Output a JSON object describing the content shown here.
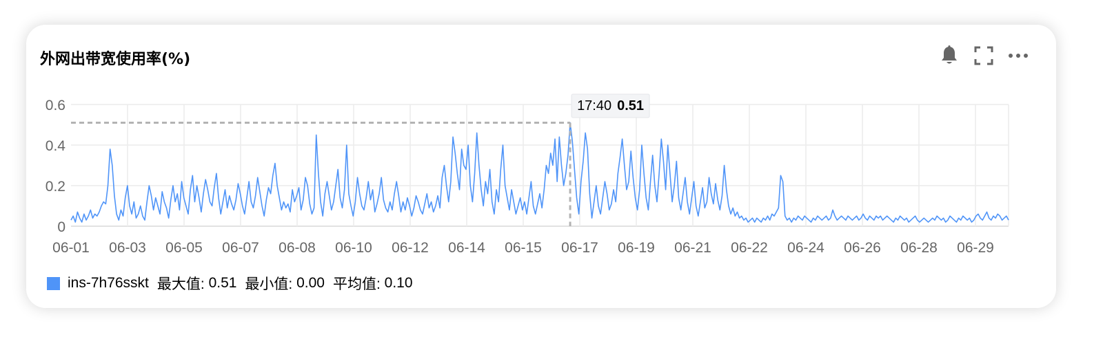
{
  "header": {
    "title": "外网出带宽使用率(%)",
    "icons": [
      "bell-icon",
      "fullscreen-icon",
      "more-icon"
    ]
  },
  "tooltip": {
    "time": "17:40",
    "value": "0.51"
  },
  "legend": {
    "series_name": "ins-7h76sskt",
    "swatch_color": "#4f94f8",
    "stats": [
      {
        "label": "最大值: ",
        "value": "0.51"
      },
      {
        "label": "最小值: ",
        "value": "0.00"
      },
      {
        "label": "平均值: ",
        "value": "0.10"
      }
    ]
  },
  "chart_data": {
    "type": "line",
    "ylim": [
      0,
      0.6
    ],
    "yticks": [
      0,
      0.2,
      0.4,
      0.6
    ],
    "ytick_labels": [
      "0",
      "0.2",
      "0.4",
      "0.6"
    ],
    "xtick_labels": [
      "06-01",
      "06-03",
      "06-05",
      "06-07",
      "06-08",
      "06-10",
      "06-12",
      "06-14",
      "06-15",
      "06-17",
      "06-19",
      "06-21",
      "06-22",
      "06-24",
      "06-26",
      "06-28",
      "06-29"
    ],
    "grid": true,
    "legend_position": "bottom-left",
    "series": [
      {
        "name": "ins-7h76sskt",
        "color": "#4f94f8",
        "max": 0.51,
        "min": 0.0,
        "avg": 0.1,
        "values": [
          0.03,
          0.05,
          0.02,
          0.07,
          0.04,
          0.02,
          0.06,
          0.03,
          0.05,
          0.08,
          0.04,
          0.06,
          0.05,
          0.07,
          0.1,
          0.12,
          0.11,
          0.2,
          0.38,
          0.3,
          0.15,
          0.06,
          0.03,
          0.08,
          0.05,
          0.14,
          0.2,
          0.1,
          0.06,
          0.12,
          0.04,
          0.06,
          0.1,
          0.05,
          0.03,
          0.12,
          0.2,
          0.15,
          0.08,
          0.14,
          0.1,
          0.06,
          0.17,
          0.12,
          0.09,
          0.04,
          0.13,
          0.2,
          0.12,
          0.16,
          0.08,
          0.22,
          0.14,
          0.1,
          0.06,
          0.18,
          0.25,
          0.12,
          0.2,
          0.14,
          0.07,
          0.16,
          0.23,
          0.18,
          0.12,
          0.1,
          0.19,
          0.26,
          0.14,
          0.06,
          0.12,
          0.18,
          0.09,
          0.15,
          0.11,
          0.08,
          0.13,
          0.21,
          0.16,
          0.1,
          0.06,
          0.14,
          0.22,
          0.12,
          0.09,
          0.15,
          0.24,
          0.17,
          0.1,
          0.05,
          0.13,
          0.19,
          0.16,
          0.25,
          0.31,
          0.2,
          0.14,
          0.08,
          0.12,
          0.09,
          0.11,
          0.07,
          0.18,
          0.12,
          0.15,
          0.19,
          0.08,
          0.13,
          0.24,
          0.2,
          0.11,
          0.06,
          0.09,
          0.45,
          0.26,
          0.12,
          0.05,
          0.16,
          0.22,
          0.15,
          0.08,
          0.12,
          0.2,
          0.28,
          0.14,
          0.09,
          0.18,
          0.4,
          0.16,
          0.1,
          0.05,
          0.12,
          0.24,
          0.16,
          0.1,
          0.08,
          0.14,
          0.22,
          0.13,
          0.18,
          0.07,
          0.11,
          0.16,
          0.24,
          0.13,
          0.09,
          0.07,
          0.12,
          0.08,
          0.16,
          0.22,
          0.15,
          0.07,
          0.12,
          0.08,
          0.14,
          0.1,
          0.05,
          0.09,
          0.15,
          0.12,
          0.08,
          0.06,
          0.11,
          0.16,
          0.09,
          0.12,
          0.07,
          0.1,
          0.15,
          0.09,
          0.24,
          0.3,
          0.2,
          0.12,
          0.22,
          0.44,
          0.36,
          0.26,
          0.18,
          0.38,
          0.3,
          0.28,
          0.4,
          0.2,
          0.12,
          0.26,
          0.46,
          0.3,
          0.18,
          0.1,
          0.22,
          0.16,
          0.28,
          0.12,
          0.06,
          0.18,
          0.12,
          0.28,
          0.4,
          0.2,
          0.14,
          0.08,
          0.18,
          0.12,
          0.06,
          0.1,
          0.14,
          0.08,
          0.12,
          0.06,
          0.14,
          0.22,
          0.1,
          0.06,
          0.11,
          0.16,
          0.09,
          0.18,
          0.3,
          0.26,
          0.36,
          0.3,
          0.43,
          0.22,
          0.44,
          0.3,
          0.2,
          0.26,
          0.35,
          0.51,
          0.42,
          0.28,
          0.14,
          0.06,
          0.22,
          0.32,
          0.46,
          0.38,
          0.16,
          0.04,
          0.12,
          0.2,
          0.1,
          0.06,
          0.14,
          0.22,
          0.16,
          0.08,
          0.11,
          0.18,
          0.12,
          0.26,
          0.34,
          0.43,
          0.3,
          0.18,
          0.22,
          0.37,
          0.24,
          0.14,
          0.08,
          0.18,
          0.4,
          0.26,
          0.14,
          0.08,
          0.22,
          0.35,
          0.2,
          0.12,
          0.26,
          0.43,
          0.32,
          0.18,
          0.4,
          0.26,
          0.12,
          0.2,
          0.32,
          0.14,
          0.08,
          0.16,
          0.24,
          0.12,
          0.06,
          0.14,
          0.22,
          0.1,
          0.05,
          0.12,
          0.19,
          0.09,
          0.12,
          0.24,
          0.16,
          0.11,
          0.21,
          0.13,
          0.08,
          0.15,
          0.3,
          0.18,
          0.1,
          0.06,
          0.09,
          0.05,
          0.07,
          0.04,
          0.05,
          0.03,
          0.04,
          0.02,
          0.03,
          0.04,
          0.02,
          0.04,
          0.03,
          0.02,
          0.04,
          0.03,
          0.05,
          0.03,
          0.06,
          0.05,
          0.07,
          0.09,
          0.25,
          0.22,
          0.05,
          0.03,
          0.04,
          0.02,
          0.04,
          0.03,
          0.05,
          0.04,
          0.03,
          0.05,
          0.04,
          0.03,
          0.02,
          0.04,
          0.03,
          0.05,
          0.04,
          0.03,
          0.04,
          0.05,
          0.03,
          0.04,
          0.08,
          0.05,
          0.03,
          0.04,
          0.05,
          0.04,
          0.03,
          0.05,
          0.04,
          0.03,
          0.04,
          0.05,
          0.03,
          0.04,
          0.06,
          0.04,
          0.03,
          0.05,
          0.04,
          0.03,
          0.05,
          0.04,
          0.05,
          0.03,
          0.04,
          0.05,
          0.04,
          0.03,
          0.02,
          0.04,
          0.03,
          0.05,
          0.04,
          0.03,
          0.04,
          0.02,
          0.03,
          0.04,
          0.05,
          0.03,
          0.02,
          0.03,
          0.04,
          0.03,
          0.02,
          0.03,
          0.04,
          0.03,
          0.05,
          0.04,
          0.03,
          0.04,
          0.02,
          0.03,
          0.05,
          0.04,
          0.03,
          0.02,
          0.04,
          0.03,
          0.05,
          0.04,
          0.03,
          0.04,
          0.02,
          0.03,
          0.05,
          0.06,
          0.04,
          0.03,
          0.05,
          0.07,
          0.04,
          0.03,
          0.05,
          0.04,
          0.06,
          0.05,
          0.03,
          0.04,
          0.05,
          0.03
        ]
      }
    ]
  }
}
